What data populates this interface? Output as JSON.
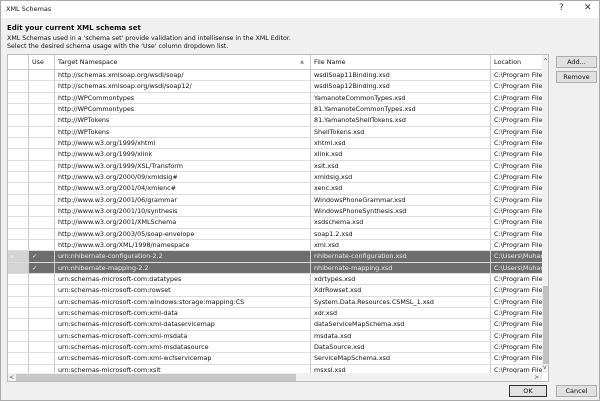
{
  "window": {
    "title": "XML Schemas",
    "help": "?",
    "close": "✕"
  },
  "heading": "Edit your current XML schema set",
  "description": [
    "XML Schemas used in a 'schema set' provide validation and intellisense in the XML Editor.",
    "Select the desired schema usage with the 'Use' column dropdown list."
  ],
  "grid": {
    "columns": [
      "",
      "Use",
      "Target Namespace",
      "File Name",
      "Location"
    ],
    "sort_indicator": "▲",
    "rows": [
      {
        "use": "",
        "ns": "http://schemas.xmlsoap.org/wsdl/soap/",
        "file": "wsdlSoap11Binding.xsd",
        "loc": "C:\\Program Files (x"
      },
      {
        "use": "",
        "ns": "http://schemas.xmlsoap.org/wsdl/soap12/",
        "file": "wsdlSoap12Binding.xsd",
        "loc": "C:\\Program Files (x"
      },
      {
        "use": "",
        "ns": "http://WPCommontypes",
        "file": "YamanoteCommonTypes.xsd",
        "loc": "C:\\Program Files (x"
      },
      {
        "use": "",
        "ns": "http://WPCommontypes",
        "file": "81.YamanoteCommonTypes.xsd",
        "loc": "C:\\Program Files (x"
      },
      {
        "use": "",
        "ns": "http://WPTokens",
        "file": "81.YamanoteShellTokens.xsd",
        "loc": "C:\\Program Files (x"
      },
      {
        "use": "",
        "ns": "http://WPTokens",
        "file": "ShellTokens.xsd",
        "loc": "C:\\Program Files (x"
      },
      {
        "use": "",
        "ns": "http://www.w3.org/1999/xhtml",
        "file": "xhtml.xsd",
        "loc": "C:\\Program Files (x"
      },
      {
        "use": "",
        "ns": "http://www.w3.org/1999/xlink",
        "file": "xlink.xsd",
        "loc": "C:\\Program Files (x"
      },
      {
        "use": "",
        "ns": "http://www.w3.org/1999/XSL/Transform",
        "file": "xslt.xsd",
        "loc": "C:\\Program Files (x"
      },
      {
        "use": "",
        "ns": "http://www.w3.org/2000/09/xmldsig#",
        "file": "xmldsig.xsd",
        "loc": "C:\\Program Files (x"
      },
      {
        "use": "",
        "ns": "http://www.w3.org/2001/04/xmlenc#",
        "file": "xenc.xsd",
        "loc": "C:\\Program Files (x"
      },
      {
        "use": "",
        "ns": "http://www.w3.org/2001/06/grammar",
        "file": "WindowsPhoneGrammar.xsd",
        "loc": "C:\\Program Files (x"
      },
      {
        "use": "",
        "ns": "http://www.w3.org/2001/10/synthesis",
        "file": "WindowsPhoneSynthesis.xsd",
        "loc": "C:\\Program Files (x"
      },
      {
        "use": "",
        "ns": "http://www.w3.org/2001/XMLSchema",
        "file": "xsdschema.xsd",
        "loc": "C:\\Program Files (x"
      },
      {
        "use": "",
        "ns": "http://www.w3.org/2003/05/soap-envelope",
        "file": "soap1.2.xsd",
        "loc": "C:\\Program Files (x"
      },
      {
        "use": "",
        "ns": "http://www.w3.org/XML/1998/namespace",
        "file": "xml.xsd",
        "loc": "C:\\Program Files (x"
      },
      {
        "use": "✓",
        "ns": "urn:nhibernate-configuration-2.2",
        "file": "nhibernate-configuration.xsd",
        "loc": "C:\\Users\\Muhamm",
        "selected": true,
        "current": true
      },
      {
        "use": "✓",
        "ns": "urn:nhibernate-mapping-2.2",
        "file": "nhibernate-mapping.xsd",
        "loc": "C:\\Users\\Muhamm",
        "selected": true
      },
      {
        "use": "",
        "ns": "urn:schemas-microsoft-com:datatypes",
        "file": "xdrtypes.xsd",
        "loc": "C:\\Program Files (x"
      },
      {
        "use": "",
        "ns": "urn:schemas-microsoft-com:rowset",
        "file": "XdrRowset.xsd",
        "loc": "C:\\Program Files (x"
      },
      {
        "use": "",
        "ns": "urn:schemas-microsoft-com:windows:storage:mapping:CS",
        "file": "System.Data.Resources.CSMSL_1.xsd",
        "loc": "C:\\Program Files (x"
      },
      {
        "use": "",
        "ns": "urn:schemas-microsoft-com:xml-data",
        "file": "xdr.xsd",
        "loc": "C:\\Program Files (x"
      },
      {
        "use": "",
        "ns": "urn:schemas-microsoft-com:xml-dataservicemap",
        "file": "dataServiceMapSchema.xsd",
        "loc": "C:\\Program Files (x"
      },
      {
        "use": "",
        "ns": "urn:schemas-microsoft-com:xml-msdata",
        "file": "msdata.xsd",
        "loc": "C:\\Program Files (x"
      },
      {
        "use": "",
        "ns": "urn:schemas-microsoft-com:xml-msdatasource",
        "file": "DataSource.xsd",
        "loc": "C:\\Program Files (x"
      },
      {
        "use": "",
        "ns": "urn:schemas-microsoft-com:xml-wcfservicemap",
        "file": "ServiceMapSchema.xsd",
        "loc": "C:\\Program Files (x"
      },
      {
        "use": "",
        "ns": "urn:schemas-microsoft-com:xslt",
        "file": "msxsl.xsd",
        "loc": "C:\\Program Files (x"
      }
    ]
  },
  "buttons": {
    "add": "Add...",
    "remove": "Remove",
    "ok": "OK",
    "cancel": "Cancel"
  }
}
